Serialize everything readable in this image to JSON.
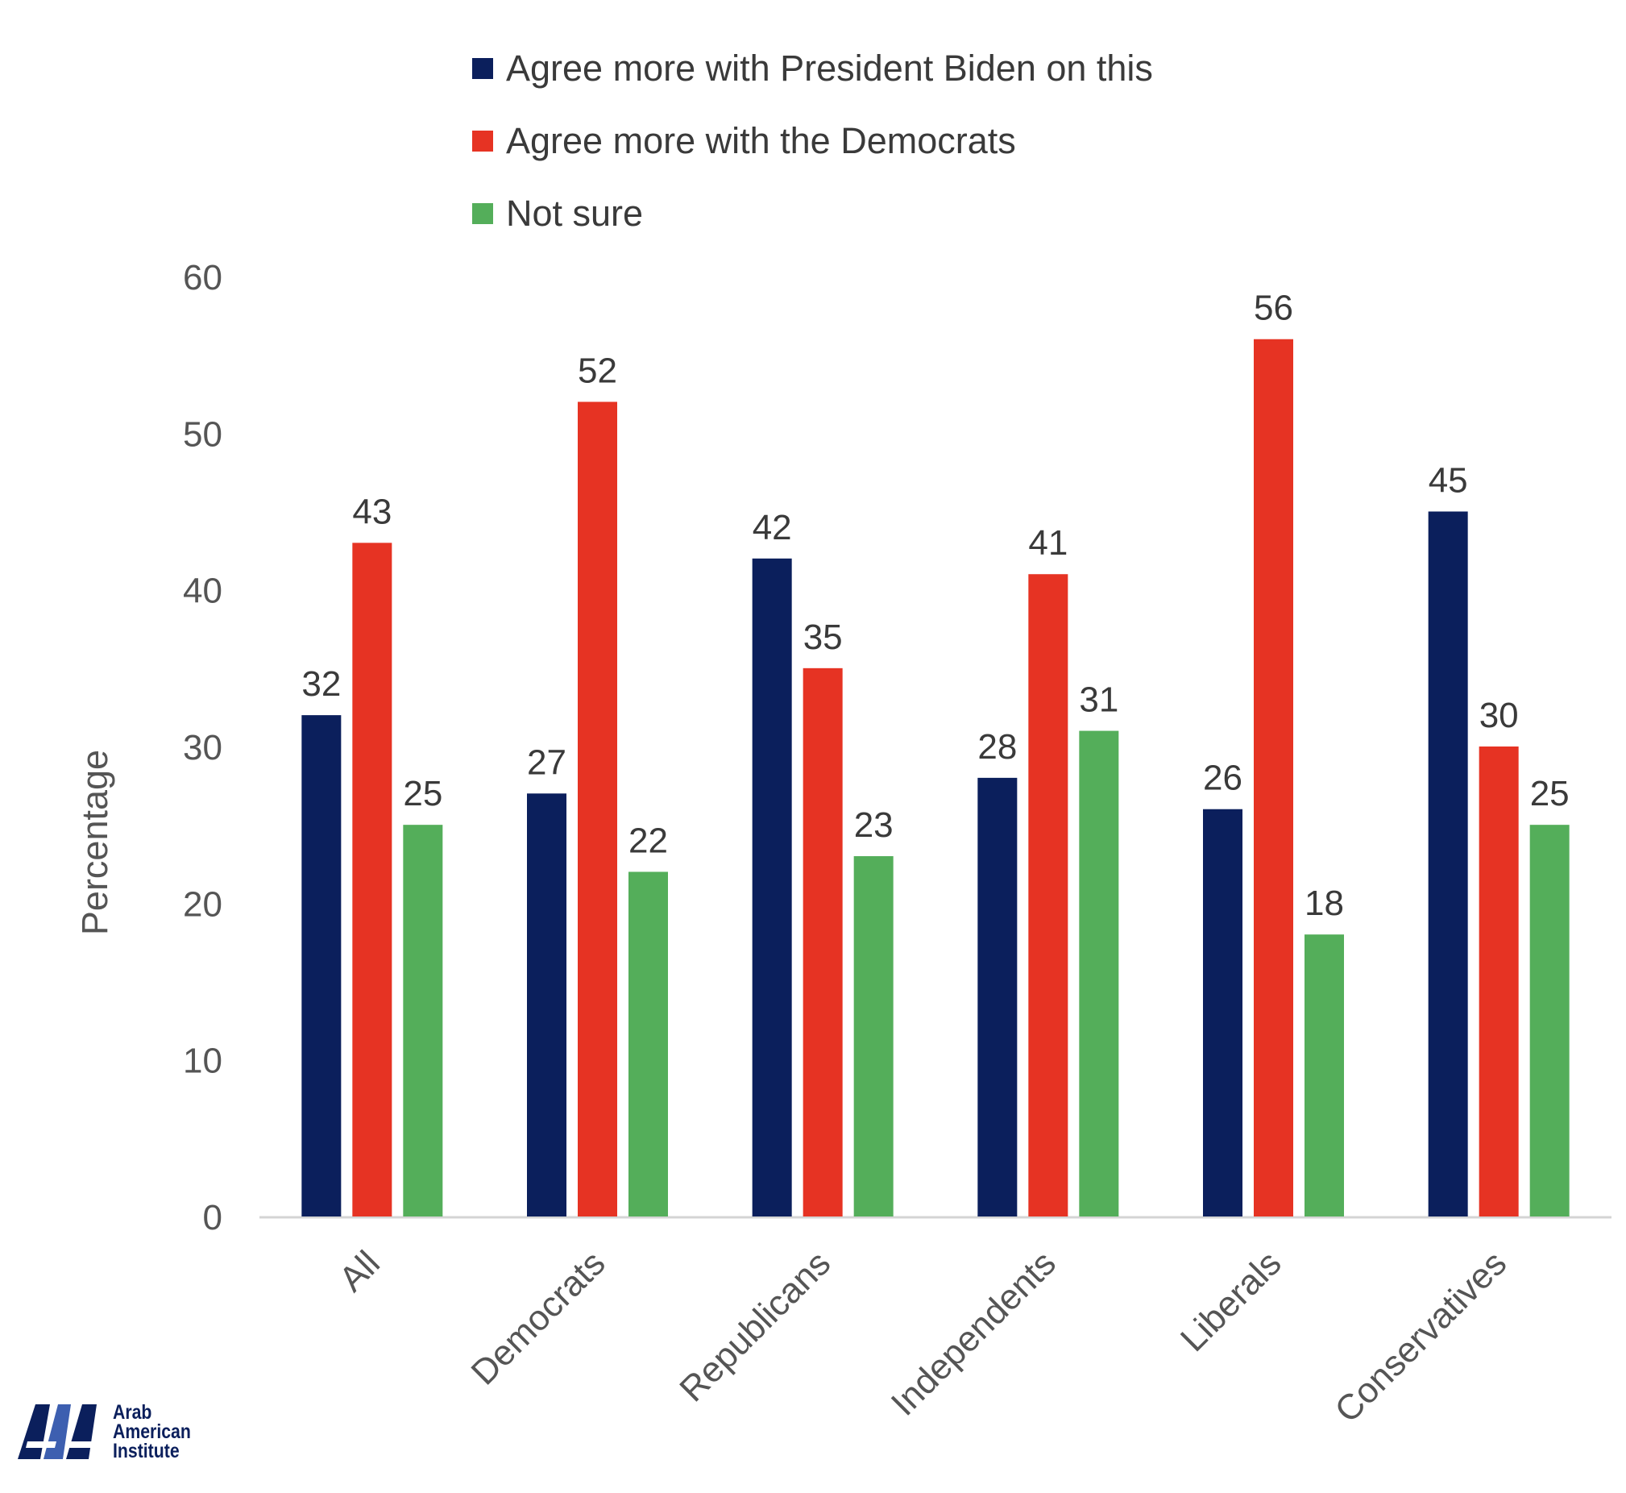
{
  "colors": {
    "biden": "#0b1f5c",
    "democrats": "#e63323",
    "not_sure": "#54ae5a",
    "axis": "#d4d4d4",
    "text": "#3a3a3a",
    "tick": "#555555"
  },
  "legend": [
    {
      "label": "Agree more with President Biden on this",
      "color": "#0b1f5c"
    },
    {
      "label": "Agree more with the Democrats",
      "color": "#e63323"
    },
    {
      "label": "Not sure",
      "color": "#54ae5a"
    }
  ],
  "logo": {
    "line1": "Arab",
    "line2": "American",
    "line3": "Institute"
  },
  "chart_data": {
    "type": "bar",
    "categories": [
      "All",
      "Democrats",
      "Republicans",
      "Independents",
      "Liberals",
      "Conservatives"
    ],
    "series": [
      {
        "name": "Agree more with President Biden on this",
        "values": [
          32,
          27,
          42,
          28,
          26,
          45
        ],
        "color": "#0b1f5c"
      },
      {
        "name": "Agree more with the Democrats",
        "values": [
          43,
          52,
          35,
          41,
          56,
          30
        ],
        "color": "#e63323"
      },
      {
        "name": "Not sure",
        "values": [
          25,
          22,
          23,
          31,
          18,
          25
        ],
        "color": "#54ae5a"
      }
    ],
    "title": "",
    "xlabel": "",
    "ylabel": "Percentage",
    "ylim": [
      0,
      60
    ],
    "yticks": [
      0,
      10,
      20,
      30,
      40,
      50,
      60
    ],
    "grid": false,
    "legend_position": "top",
    "data_labels": true
  }
}
